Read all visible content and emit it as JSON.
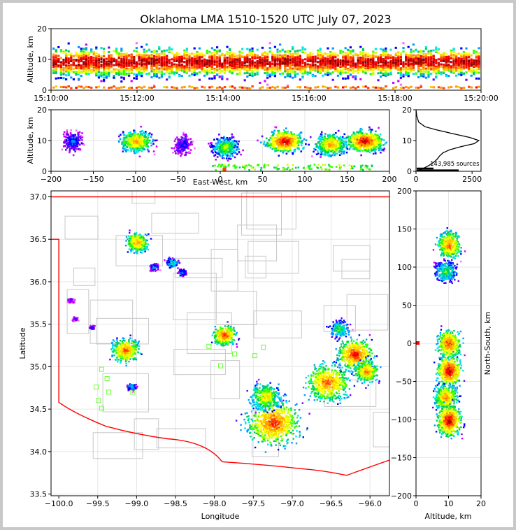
{
  "title": "Oklahoma LMA 1510-1520 UTC July 07, 2023",
  "colors": {
    "palette": [
      "#ff66ff",
      "#cc00ff",
      "#6600ff",
      "#0000ff",
      "#0099ff",
      "#00e5e5",
      "#00cc66",
      "#33ff00",
      "#ccff00",
      "#ffff00",
      "#ffcc00",
      "#ff9900",
      "#ff4400",
      "#ff0000",
      "#cc0000",
      "#880000"
    ],
    "state_border": "#ff0000",
    "county_lines": "#c8c8c8",
    "station_marker": "#66ff33",
    "histogram_line": "#000000"
  },
  "chart_data": [
    {
      "id": "time-altitude",
      "type": "heatmap",
      "ylabel": "Altitude, km",
      "xlim": [
        "15:10:00",
        "15:20:00"
      ],
      "ylim": [
        0,
        20
      ],
      "xticks": [
        "15:10:00",
        "15:12:00",
        "15:14:00",
        "15:16:00",
        "15:18:00",
        "15:20:00"
      ],
      "yticks": [
        "0",
        "10",
        "20"
      ]
    },
    {
      "id": "ew-altitude",
      "type": "heatmap",
      "xlabel": "East-West, km",
      "ylabel": "Altitude, km",
      "xlim": [
        -200,
        200
      ],
      "ylim": [
        0,
        20
      ],
      "xticks": [
        "−200",
        "−150",
        "−100",
        "−50",
        "0",
        "50",
        "100",
        "150",
        "200"
      ],
      "yticks": [
        "0",
        "10",
        "20"
      ],
      "clusters": [
        {
          "x": -175,
          "alt": 10,
          "density": 0.3
        },
        {
          "x": -100,
          "alt": 10,
          "density": 0.8
        },
        {
          "x": -45,
          "alt": 9,
          "density": 0.25
        },
        {
          "x": 5,
          "alt": 8,
          "density": 0.6
        },
        {
          "x": 75,
          "alt": 10,
          "density": 1.0
        },
        {
          "x": 130,
          "alt": 9,
          "density": 0.8
        },
        {
          "x": 170,
          "alt": 10,
          "density": 1.0
        }
      ]
    },
    {
      "id": "altitude-histogram",
      "type": "line",
      "xlim": [
        0,
        2900
      ],
      "ylim": [
        0,
        20
      ],
      "xticks": [
        "0",
        "2500"
      ],
      "yticks": [
        "0",
        "10",
        "20"
      ],
      "annotation": "143,985 sources",
      "profile": [
        [
          0,
          20
        ],
        [
          30,
          18
        ],
        [
          120,
          16
        ],
        [
          400,
          14.5
        ],
        [
          900,
          13.5
        ],
        [
          1600,
          12.3
        ],
        [
          2400,
          11
        ],
        [
          2800,
          10
        ],
        [
          2600,
          9
        ],
        [
          2000,
          8
        ],
        [
          1500,
          7
        ],
        [
          1200,
          6
        ],
        [
          1050,
          5
        ],
        [
          950,
          4
        ],
        [
          800,
          3
        ],
        [
          600,
          2
        ],
        [
          350,
          1
        ],
        [
          80,
          0.3
        ]
      ]
    },
    {
      "id": "plan-view",
      "type": "heatmap",
      "xlabel": "Longitude",
      "ylabel": "Latitude",
      "xlim": [
        -100.1,
        -95.75
      ],
      "ylim": [
        33.48,
        37.07
      ],
      "xticks": [
        "−100.0",
        "−99.5",
        "−99.0",
        "−98.5",
        "−98.0",
        "−97.5",
        "−97.0",
        "−96.5",
        "−96.0"
      ],
      "yticks": [
        "33.5",
        "34.0",
        "34.5",
        "35.0",
        "35.5",
        "36.0",
        "36.5",
        "37.0"
      ],
      "stations": [
        [
          -99.45,
          34.97
        ],
        [
          -99.38,
          34.86
        ],
        [
          -99.52,
          34.76
        ],
        [
          -99.36,
          34.7
        ],
        [
          -99.49,
          34.6
        ],
        [
          -99.45,
          34.51
        ],
        [
          -99.05,
          34.7
        ],
        [
          -98.07,
          35.24
        ],
        [
          -97.92,
          35.01
        ],
        [
          -97.8,
          35.44
        ],
        [
          -97.74,
          35.15
        ],
        [
          -97.48,
          35.13
        ],
        [
          -97.37,
          35.23
        ]
      ],
      "cells": [
        {
          "lon": -99.0,
          "lat": 36.47,
          "r": 0.13,
          "density": 0.8
        },
        {
          "lon": -98.78,
          "lat": 36.18,
          "r": 0.05,
          "density": 0.35
        },
        {
          "lon": -98.55,
          "lat": 36.23,
          "r": 0.07,
          "density": 0.45
        },
        {
          "lon": -98.42,
          "lat": 36.12,
          "r": 0.05,
          "density": 0.35
        },
        {
          "lon": -99.85,
          "lat": 35.79,
          "r": 0.04,
          "density": 0.2
        },
        {
          "lon": -99.8,
          "lat": 35.57,
          "r": 0.03,
          "density": 0.2
        },
        {
          "lon": -99.58,
          "lat": 35.47,
          "r": 0.03,
          "density": 0.25
        },
        {
          "lon": -99.15,
          "lat": 35.2,
          "r": 0.16,
          "density": 0.85
        },
        {
          "lon": -99.07,
          "lat": 34.77,
          "r": 0.05,
          "density": 0.4
        },
        {
          "lon": -97.88,
          "lat": 35.38,
          "r": 0.13,
          "density": 0.9
        },
        {
          "lon": -97.25,
          "lat": 34.35,
          "r": 0.3,
          "density": 0.9
        },
        {
          "lon": -97.35,
          "lat": 34.65,
          "r": 0.18,
          "density": 0.7
        },
        {
          "lon": -96.55,
          "lat": 34.82,
          "r": 0.25,
          "density": 0.85
        },
        {
          "lon": -96.2,
          "lat": 35.15,
          "r": 0.2,
          "density": 0.95
        },
        {
          "lon": -96.05,
          "lat": 34.95,
          "r": 0.15,
          "density": 0.8
        },
        {
          "lon": -96.4,
          "lat": 35.45,
          "r": 0.12,
          "density": 0.5
        }
      ]
    },
    {
      "id": "altitude-ns",
      "type": "heatmap",
      "xlabel": "Altitude, km",
      "ylabel": "North-South, km",
      "xlim": [
        0,
        20
      ],
      "ylim": [
        -200,
        200
      ],
      "xticks": [
        "0",
        "10",
        "20"
      ],
      "yticks": [
        "−200",
        "−150",
        "−100",
        "−50",
        "0",
        "50",
        "100",
        "150",
        "200"
      ],
      "clusters": [
        {
          "ns": 130,
          "alt": 10,
          "density": 0.85
        },
        {
          "ns": 95,
          "alt": 9,
          "density": 0.5
        },
        {
          "ns": 0,
          "alt": 10,
          "density": 0.9
        },
        {
          "ns": -35,
          "alt": 10,
          "density": 1.0
        },
        {
          "ns": -70,
          "alt": 9,
          "density": 0.8
        },
        {
          "ns": -100,
          "alt": 10,
          "density": 1.0
        }
      ]
    }
  ]
}
